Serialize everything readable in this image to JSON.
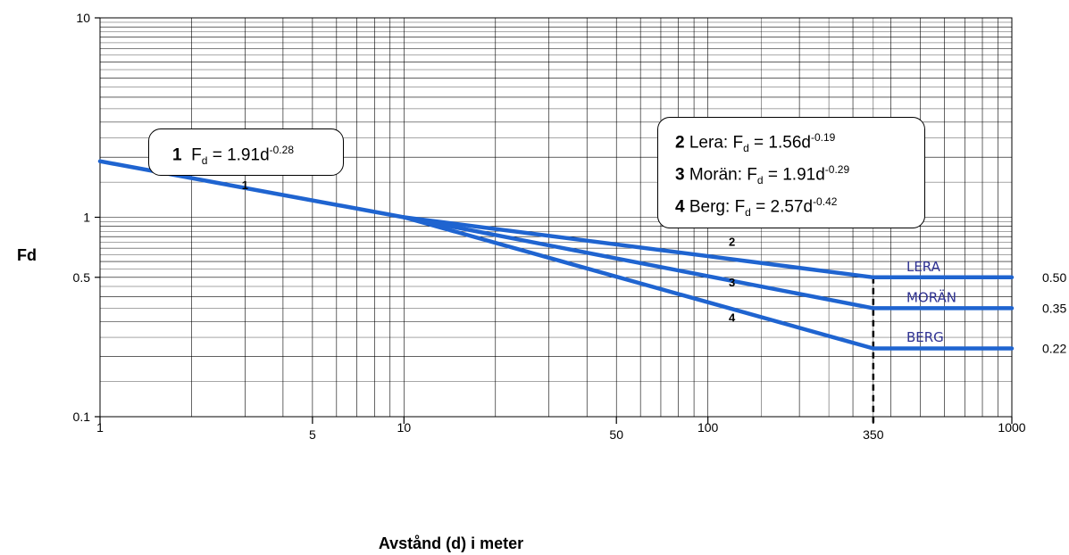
{
  "chart_data": {
    "type": "line",
    "xlabel": "Avstånd (d) i meter",
    "ylabel": "Fd",
    "xscale": "log",
    "yscale": "log",
    "xlim": [
      1,
      1000
    ],
    "ylim": [
      0.1,
      10
    ],
    "x_tick_labels": [
      "1",
      "5",
      "10",
      "50",
      "100",
      "350",
      "1000"
    ],
    "x_tick_values": [
      1,
      5,
      10,
      50,
      100,
      350,
      1000
    ],
    "y_tick_labels": [
      "0.1",
      "0.5",
      "1",
      "10"
    ],
    "y_tick_values": [
      0.1,
      0.5,
      1,
      10
    ],
    "grid": true,
    "threshold_distance": 350,
    "series": [
      {
        "name": "1",
        "points": [
          [
            1,
            1.91
          ],
          [
            10,
            1.0
          ]
        ]
      },
      {
        "name": "2",
        "points": [
          [
            10,
            1.0
          ],
          [
            350,
            0.5
          ],
          [
            1000,
            0.5
          ]
        ]
      },
      {
        "name": "3",
        "points": [
          [
            10,
            1.0
          ],
          [
            350,
            0.35
          ],
          [
            1000,
            0.35
          ]
        ]
      },
      {
        "name": "4",
        "points": [
          [
            10,
            1.0
          ],
          [
            350,
            0.22
          ],
          [
            1000,
            0.22
          ]
        ]
      }
    ],
    "segment_labels": [
      {
        "text": "1",
        "x": 3.0,
        "y": 1.38
      },
      {
        "text": "2",
        "x": 120,
        "y": 0.72
      },
      {
        "text": "3",
        "x": 120,
        "y": 0.45
      },
      {
        "text": "4",
        "x": 120,
        "y": 0.3
      }
    ],
    "ground_labels": [
      {
        "text": "LERA",
        "x": 450,
        "y": 0.535
      },
      {
        "text": "MORÄN",
        "x": 450,
        "y": 0.375
      },
      {
        "text": "BERG",
        "x": 450,
        "y": 0.237
      }
    ],
    "end_values": [
      {
        "text": "0.50",
        "y": 0.5
      },
      {
        "text": "0.35",
        "y": 0.35
      },
      {
        "text": "0.22",
        "y": 0.22
      }
    ],
    "annotations": {
      "box1": {
        "num": "1",
        "f": "F",
        "sub": "d",
        "eq": " = 1.91d",
        "exp": "-0.28"
      },
      "box2": [
        {
          "num": "2",
          "soil": " Lera: ",
          "f": "F",
          "sub": "d",
          "eq": " = 1.56d",
          "exp": "-0.19"
        },
        {
          "num": "3",
          "soil": " Morän: ",
          "f": "F",
          "sub": "d",
          "eq": " = 1.91d",
          "exp": "-0.29"
        },
        {
          "num": "4",
          "soil": " Berg: ",
          "f": "F",
          "sub": "d",
          "eq": " = 2.57d",
          "exp": "-0.42"
        }
      ]
    },
    "colors": {
      "line": "#1f64d0",
      "grid": "#000000",
      "ground_label": "#2e3192"
    }
  }
}
